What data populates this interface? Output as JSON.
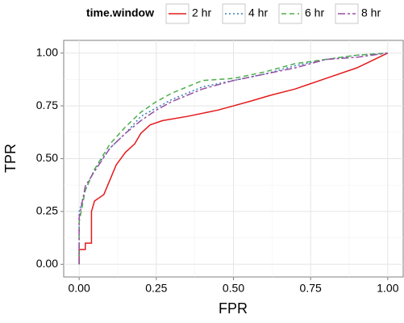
{
  "chart_data": {
    "type": "line",
    "xlabel": "FPR",
    "ylabel": "TPR",
    "legend_title": "time.window",
    "legend_position": "top",
    "grid": true,
    "xlim": [
      -0.05,
      1.05
    ],
    "ylim": [
      -0.06,
      1.06
    ],
    "xticks": [
      {
        "value": 0,
        "label": "0.00"
      },
      {
        "value": 0.25,
        "label": "0.25"
      },
      {
        "value": 0.5,
        "label": "0.50"
      },
      {
        "value": 0.75,
        "label": "0.75"
      },
      {
        "value": 1,
        "label": "1.00"
      }
    ],
    "yticks": [
      {
        "value": 0,
        "label": "0.00"
      },
      {
        "value": 0.25,
        "label": "0.25"
      },
      {
        "value": 0.5,
        "label": "0.50"
      },
      {
        "value": 0.75,
        "label": "0.75"
      },
      {
        "value": 1,
        "label": "1.00"
      }
    ],
    "series": [
      {
        "name": "2 hr",
        "color": "#e41a1c",
        "dash": "none",
        "x": [
          0,
          0,
          0.02,
          0.02,
          0.04,
          0.04,
          0.05,
          0.08,
          0.1,
          0.12,
          0.15,
          0.18,
          0.2,
          0.23,
          0.27,
          0.35,
          0.45,
          0.55,
          0.62,
          0.7,
          0.8,
          0.9,
          1
        ],
        "values": [
          0,
          0.07,
          0.07,
          0.1,
          0.1,
          0.25,
          0.3,
          0.33,
          0.4,
          0.47,
          0.53,
          0.57,
          0.62,
          0.66,
          0.68,
          0.7,
          0.73,
          0.77,
          0.8,
          0.83,
          0.88,
          0.93,
          1
        ]
      },
      {
        "name": "4 hr",
        "color": "#377eb8",
        "dash": "2,3",
        "x": [
          0,
          0,
          0.02,
          0.05,
          0.1,
          0.15,
          0.2,
          0.25,
          0.3,
          0.4,
          0.5,
          0.6,
          0.7,
          0.8,
          0.9,
          1
        ],
        "values": [
          0,
          0.25,
          0.35,
          0.45,
          0.55,
          0.62,
          0.7,
          0.74,
          0.78,
          0.84,
          0.87,
          0.9,
          0.94,
          0.97,
          0.99,
          1
        ]
      },
      {
        "name": "6 hr",
        "color": "#4daf4a",
        "dash": "6,4",
        "x": [
          0,
          0,
          0.02,
          0.05,
          0.1,
          0.15,
          0.2,
          0.25,
          0.3,
          0.4,
          0.5,
          0.6,
          0.7,
          0.8,
          0.9,
          1
        ],
        "values": [
          0,
          0.2,
          0.35,
          0.45,
          0.57,
          0.65,
          0.72,
          0.77,
          0.81,
          0.87,
          0.88,
          0.91,
          0.95,
          0.97,
          0.99,
          1
        ]
      },
      {
        "name": "8 hr",
        "color": "#984ea3",
        "dash": "9,3,3,3",
        "x": [
          0,
          0,
          0.02,
          0.05,
          0.1,
          0.15,
          0.2,
          0.25,
          0.3,
          0.4,
          0.5,
          0.6,
          0.7,
          0.8,
          0.9,
          1
        ],
        "values": [
          0,
          0.22,
          0.37,
          0.44,
          0.55,
          0.62,
          0.68,
          0.73,
          0.77,
          0.83,
          0.87,
          0.9,
          0.93,
          0.97,
          0.98,
          1
        ]
      }
    ]
  }
}
